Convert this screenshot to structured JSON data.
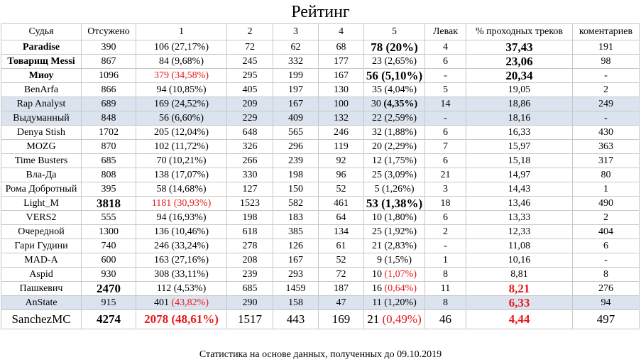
{
  "title": "Рейтинг",
  "footer": "Статистика на основе данных, полученных до 09.10.2019",
  "colors": {
    "highlight_row": "#dbe4ee",
    "red_text": "#e8191c",
    "grid": "#c8c8c8"
  },
  "headers": [
    "Судья",
    "Отсужено",
    "1",
    "2",
    "3",
    "4",
    "5",
    "Левак",
    "% проходных треков",
    "коментариев"
  ],
  "rows": [
    {
      "judge": "Paradise",
      "judged": "390",
      "c1": "106 (27,17%)",
      "c2": "72",
      "c3": "62",
      "c4": "68",
      "c5": "78 (20%)",
      "levak": "4",
      "pct": "37,43",
      "comments": "191"
    },
    {
      "judge": "Товарищ Messi",
      "judged": "867",
      "c1": "84 (9,68%)",
      "c2": "245",
      "c3": "332",
      "c4": "177",
      "c5": "23 (2,65%)",
      "levak": "6",
      "pct": "23,06",
      "comments": "98"
    },
    {
      "judge": "Миоу",
      "judged": "1096",
      "c1": "379 (34,58%)",
      "c2": "295",
      "c3": "199",
      "c4": "167",
      "c5": "56 (5,10%)",
      "levak": "-",
      "pct": "20,34",
      "comments": "-"
    },
    {
      "judge": "BenArfa",
      "judged": "866",
      "c1": "94 (10,85%)",
      "c2": "405",
      "c3": "197",
      "c4": "130",
      "c5": "35 (4,04%)",
      "levak": "5",
      "pct": "19,05",
      "comments": "2"
    },
    {
      "judge": "Rap Analyst",
      "judged": "689",
      "c1": "169 (24,52%)",
      "c2": "209",
      "c3": "167",
      "c4": "100",
      "c5": "30 (4,35%)",
      "levak": "14",
      "pct": "18,86",
      "comments": "249"
    },
    {
      "judge": "Выдуманный",
      "judged": "848",
      "c1": "56 (6,60%)",
      "c2": "229",
      "c3": "409",
      "c4": "132",
      "c5": "22 (2,59%)",
      "levak": "-",
      "pct": "18,16",
      "comments": "-"
    },
    {
      "judge": "Denya Stish",
      "judged": "1702",
      "c1": "205 (12,04%)",
      "c2": "648",
      "c3": "565",
      "c4": "246",
      "c5": "32 (1,88%)",
      "levak": "6",
      "pct": "16,33",
      "comments": "430"
    },
    {
      "judge": "MOZG",
      "judged": "870",
      "c1": "102 (11,72%)",
      "c2": "326",
      "c3": "296",
      "c4": "119",
      "c5": "20 (2,29%)",
      "levak": "7",
      "pct": "15,97",
      "comments": "363"
    },
    {
      "judge": "Time Busters",
      "judged": "685",
      "c1": "70 (10,21%)",
      "c2": "266",
      "c3": "239",
      "c4": "92",
      "c5": "12 (1,75%)",
      "levak": "6",
      "pct": "15,18",
      "comments": "317"
    },
    {
      "judge": "Вла-Да",
      "judged": "808",
      "c1": "138 (17,07%)",
      "c2": "330",
      "c3": "198",
      "c4": "96",
      "c5": "25 (3,09%)",
      "levak": "21",
      "pct": "14,97",
      "comments": "80"
    },
    {
      "judge": "Рома Добротный",
      "judged": "395",
      "c1": "58 (14,68%)",
      "c2": "127",
      "c3": "150",
      "c4": "52",
      "c5": "5 (1,26%)",
      "levak": "3",
      "pct": "14,43",
      "comments": "1"
    },
    {
      "judge": "Light_M",
      "judged": "3818",
      "c1": "1181 (30,93%)",
      "c2": "1523",
      "c3": "582",
      "c4": "461",
      "c5": "53 (1,38%)",
      "levak": "18",
      "pct": "13,46",
      "comments": "490"
    },
    {
      "judge": "VERS2",
      "judged": "555",
      "c1": "94 (16,93%)",
      "c2": "198",
      "c3": "183",
      "c4": "64",
      "c5": "10 (1,80%)",
      "levak": "6",
      "pct": "13,33",
      "comments": "2"
    },
    {
      "judge": "Очередной",
      "judged": "1300",
      "c1": "136 (10,46%)",
      "c2": "618",
      "c3": "385",
      "c4": "134",
      "c5": "25 (1,92%)",
      "levak": "2",
      "pct": "12,33",
      "comments": "404"
    },
    {
      "judge": "Гари Гудини",
      "judged": "740",
      "c1": "246 (33,24%)",
      "c2": "278",
      "c3": "126",
      "c4": "61",
      "c5": "21 (2,83%)",
      "levak": "-",
      "pct": "11,08",
      "comments": "6"
    },
    {
      "judge": "MAD-A",
      "judged": "600",
      "c1": "163 (27,16%)",
      "c2": "208",
      "c3": "167",
      "c4": "52",
      "c5": "9 (1,5%)",
      "levak": "1",
      "pct": "10,16",
      "comments": "-"
    },
    {
      "judge": "Aspid",
      "judged": "930",
      "c1": "308 (33,11%)",
      "c2": "239",
      "c3": "293",
      "c4": "72",
      "c5": "10 (1,07%)",
      "levak": "8",
      "pct": "8,81",
      "comments": "8"
    },
    {
      "judge": "Пашкевич",
      "judged": "2470",
      "c1": "112 (4,53%)",
      "c2": "685",
      "c3": "1459",
      "c4": "187",
      "c5": "16 (0,64%)",
      "levak": "11",
      "pct": "8,21",
      "comments": "276"
    },
    {
      "judge": "AnState",
      "judged": "915",
      "c1": "401 (43,82%)",
      "c2": "290",
      "c3": "158",
      "c4": "47",
      "c5": "11 (1,20%)",
      "levak": "8",
      "pct": "6,33",
      "comments": "94"
    },
    {
      "judge": "SanchezMC",
      "judged": "4274",
      "c1": "2078 (48,61%)",
      "c2": "1517",
      "c3": "443",
      "c4": "169",
      "c5": "21 (0,49%)",
      "levak": "46",
      "pct": "4,44",
      "comments": "497"
    }
  ]
}
